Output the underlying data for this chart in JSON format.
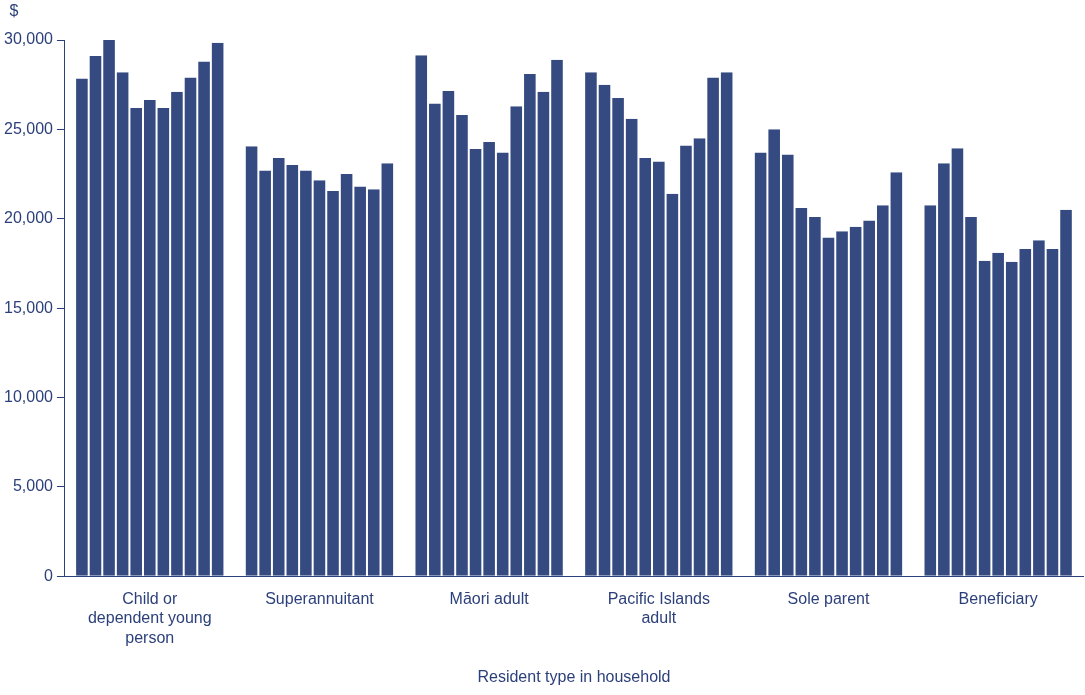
{
  "chart_data": {
    "type": "bar",
    "ylabel": "$",
    "xlabel": "Resident type in household",
    "categories": [
      "Child or dependent young person",
      "Superannuitant",
      "Māori adult",
      "Pacific Islands adult",
      "Sole parent",
      "Beneficiary"
    ],
    "series": [
      {
        "color": "#344a80",
        "values": [
          27850,
          24050,
          29150,
          28200,
          23700,
          20750
        ]
      },
      {
        "color": "#344a80",
        "values": [
          29100,
          22700,
          26450,
          27500,
          25000,
          23100
        ]
      },
      {
        "color": "#344a80",
        "values": [
          30000,
          23400,
          27150,
          26750,
          23600,
          23950
        ]
      },
      {
        "color": "#344a80",
        "values": [
          28200,
          23000,
          25800,
          25600,
          20600,
          20100
        ]
      },
      {
        "color": "#344a80",
        "values": [
          26200,
          22700,
          23900,
          23400,
          20100,
          17650
        ]
      },
      {
        "color": "#344a80",
        "values": [
          26650,
          22150,
          24300,
          23200,
          18950,
          18100
        ]
      },
      {
        "color": "#344a80",
        "values": [
          26200,
          21550,
          23700,
          21400,
          19300,
          17600
        ]
      },
      {
        "color": "#344a80",
        "values": [
          27100,
          22500,
          26300,
          24100,
          19550,
          18300
        ]
      },
      {
        "color": "#344a80",
        "values": [
          27900,
          21800,
          28100,
          24500,
          19900,
          18800
        ]
      },
      {
        "color": "#344a80",
        "values": [
          28800,
          21650,
          27100,
          27900,
          20750,
          18300
        ]
      },
      {
        "color": "#344a80",
        "values": [
          29850,
          23100,
          28900,
          28200,
          22600,
          20500
        ]
      }
    ],
    "ylim": [
      0,
      30000
    ],
    "yticks": [
      {
        "value": 0,
        "label": "0"
      },
      {
        "value": 5000,
        "label": "5,000"
      },
      {
        "value": 10000,
        "label": "10,000"
      },
      {
        "value": 15000,
        "label": "15,000"
      },
      {
        "value": 20000,
        "label": "20,000"
      },
      {
        "value": 25000,
        "label": "25,000"
      },
      {
        "value": 30000,
        "label": "30,000"
      }
    ],
    "grid": false,
    "legend": false
  }
}
